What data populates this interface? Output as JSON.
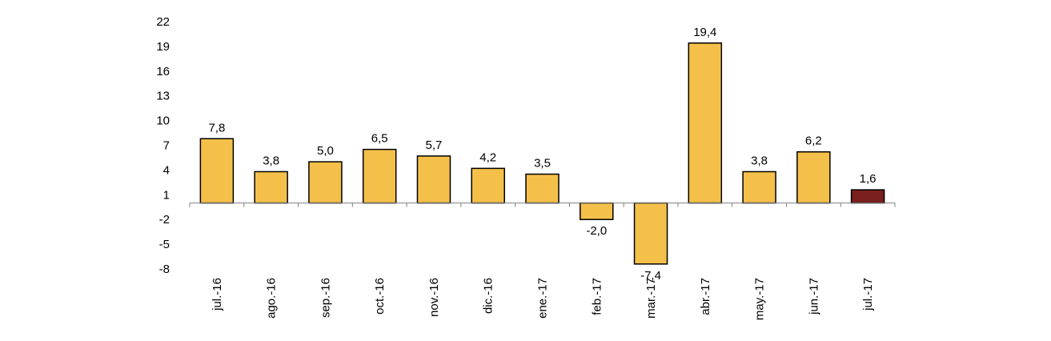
{
  "chart_data": {
    "type": "bar",
    "title": "",
    "xlabel": "",
    "ylabel": "",
    "categories": [
      "jul.-16",
      "ago.-16",
      "sep.-16",
      "oct.-16",
      "nov.-16",
      "dic.-16",
      "ene.-17",
      "feb.-17",
      "mar.-17",
      "abr.-17",
      "may.-17",
      "jun.-17",
      "jul.-17"
    ],
    "values": [
      7.8,
      3.8,
      5.0,
      6.5,
      5.7,
      4.2,
      3.5,
      -2.0,
      -7.4,
      19.4,
      3.8,
      6.2,
      1.6
    ],
    "value_labels": [
      "7,8",
      "3,8",
      "5,0",
      "6,5",
      "5,7",
      "4,2",
      "3,5",
      "-2,0",
      "-7,4",
      "19,4",
      "3,8",
      "6,2",
      "1,6"
    ],
    "yticks": [
      22,
      19,
      16,
      13,
      10,
      7,
      4,
      1,
      -2,
      -5,
      -8
    ],
    "ylim": [
      -8,
      22
    ],
    "grid": false,
    "legend": "none",
    "colors": {
      "bar": "#F5C04A",
      "highlight": "#7B1F1F",
      "outline": "#000000",
      "axis": "#808080"
    },
    "highlight_index": 12
  }
}
